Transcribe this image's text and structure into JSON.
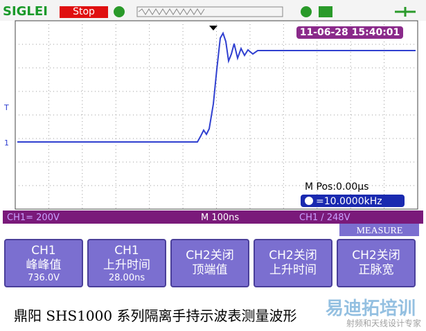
{
  "header": {
    "brand": "SIGLEI",
    "status": "Stop"
  },
  "screen": {
    "timestamp": "11-06-28 15:40:01",
    "trigger_marker": "T",
    "channel_marker": "1",
    "m_pos": "M Pos:0.00μs",
    "frequency": "=10.0000kHz"
  },
  "status_bar": {
    "channel": "CH1= 200V",
    "timebase": "M 100ns",
    "trigger": "CH1 / 248V"
  },
  "measure_tab": "MEASURE",
  "buttons": [
    [
      "CH1",
      "峰峰值",
      "736.0V"
    ],
    [
      "CH1",
      "上升时间",
      "28.00ns"
    ],
    [
      "CH2关闭",
      "顶端值"
    ],
    [
      "CH2关闭",
      "上升时间"
    ],
    [
      "CH2关闭",
      "正脉宽"
    ]
  ],
  "caption": "鼎阳 SHS1000 系列隔离手持示波表测量波形",
  "watermark": {
    "title": "易迪拓培训",
    "subtitle": "射频和天线设计专家"
  }
}
